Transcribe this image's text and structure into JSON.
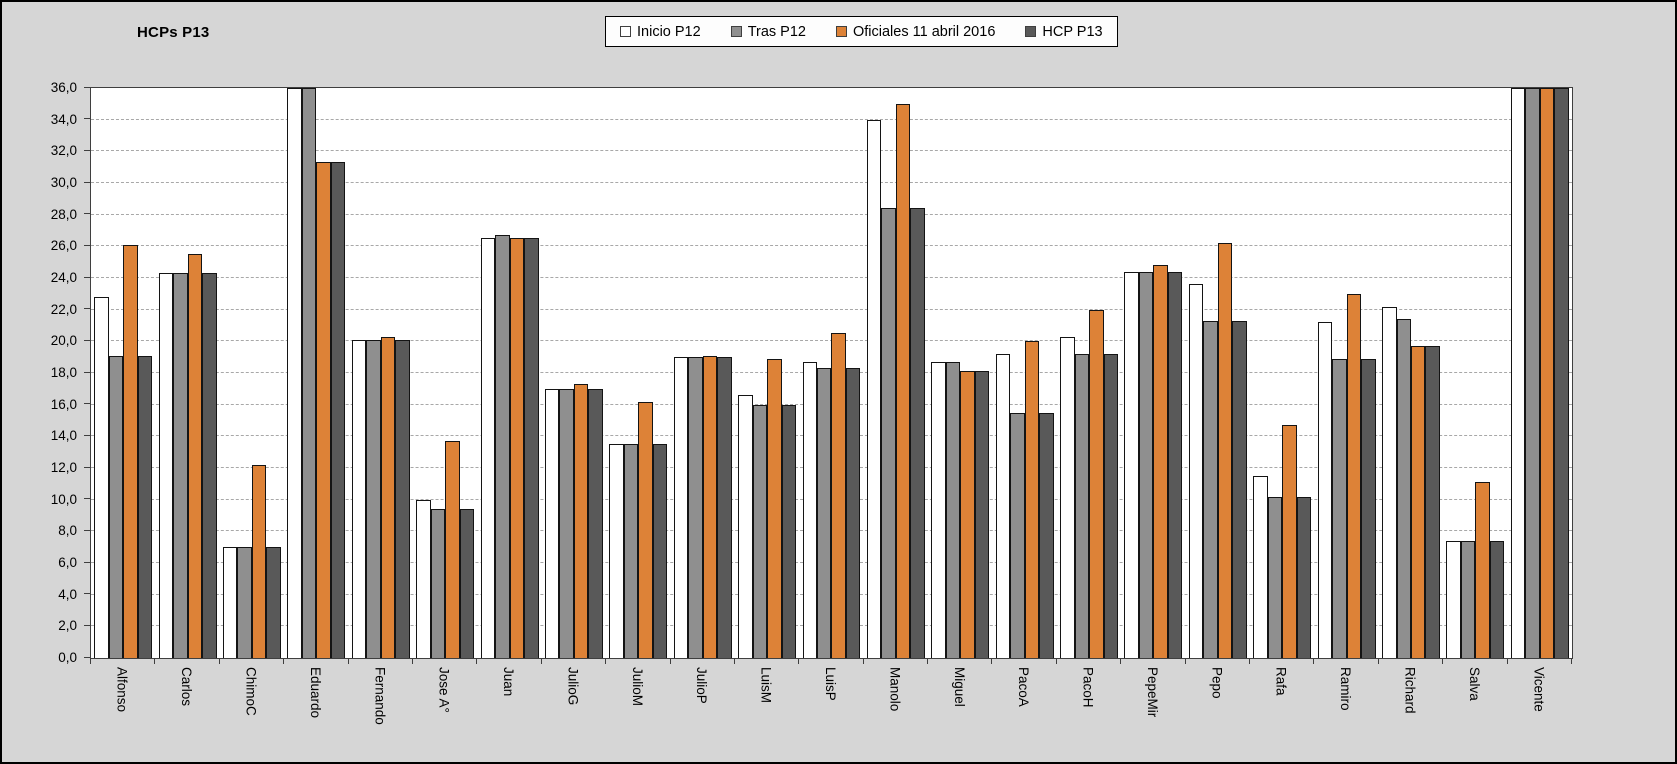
{
  "title": "HCPs P13",
  "chart_data": {
    "type": "bar",
    "title": "HCPs P13",
    "legend_position": "top-center",
    "grid": "horizontal-dashed",
    "ylim": [
      0,
      36
    ],
    "ytick_step": 2,
    "ytick_labels": [
      "0,0",
      "2,0",
      "4,0",
      "6,0",
      "8,0",
      "10,0",
      "12,0",
      "14,0",
      "16,0",
      "18,0",
      "20,0",
      "22,0",
      "24,0",
      "26,0",
      "28,0",
      "30,0",
      "32,0",
      "34,0",
      "36,0"
    ],
    "categories": [
      "Alfonso",
      "Carlos",
      "ChimoC",
      "Eduardo",
      "Fernando",
      "Jose A°",
      "Juan",
      "JulioG",
      "JulioM",
      "JulioP",
      "LuisM",
      "LuisP",
      "Manolo",
      "Miguel",
      "PacoA",
      "PacoH",
      "PepeMir",
      "Pepo",
      "Rafa",
      "Ramiro",
      "Richard",
      "Salva",
      "Vicente"
    ],
    "series": [
      {
        "name": "Inicio P12",
        "color": "#ffffff",
        "values": [
          22.8,
          24.3,
          7.0,
          36.0,
          20.1,
          10.0,
          26.5,
          17.0,
          13.5,
          19.0,
          16.6,
          18.7,
          34.0,
          18.7,
          19.2,
          20.3,
          24.4,
          23.6,
          11.5,
          21.2,
          22.2,
          7.4,
          36.0
        ]
      },
      {
        "name": "Tras P12",
        "color": "#8f8f8f",
        "values": [
          19.1,
          24.3,
          7.0,
          36.0,
          20.1,
          9.4,
          26.7,
          17.0,
          13.5,
          19.0,
          16.0,
          18.3,
          28.4,
          18.7,
          15.5,
          19.2,
          24.4,
          21.3,
          10.2,
          18.9,
          21.4,
          7.4,
          36.0
        ]
      },
      {
        "name": "Oficiales 11 abril 2016",
        "color": "#dd8237",
        "values": [
          26.1,
          25.5,
          12.2,
          31.3,
          20.3,
          13.7,
          26.5,
          17.3,
          16.2,
          19.1,
          18.9,
          20.5,
          35.0,
          18.1,
          20.0,
          22.0,
          24.8,
          26.2,
          14.7,
          23.0,
          19.7,
          11.1,
          36.0
        ]
      },
      {
        "name": "HCP P13",
        "color": "#595959",
        "values": [
          19.1,
          24.3,
          7.0,
          31.3,
          20.1,
          9.4,
          26.5,
          17.0,
          13.5,
          19.0,
          16.0,
          18.3,
          28.4,
          18.1,
          15.5,
          19.2,
          24.4,
          21.3,
          10.2,
          18.9,
          19.7,
          7.4,
          36.0
        ]
      }
    ]
  }
}
